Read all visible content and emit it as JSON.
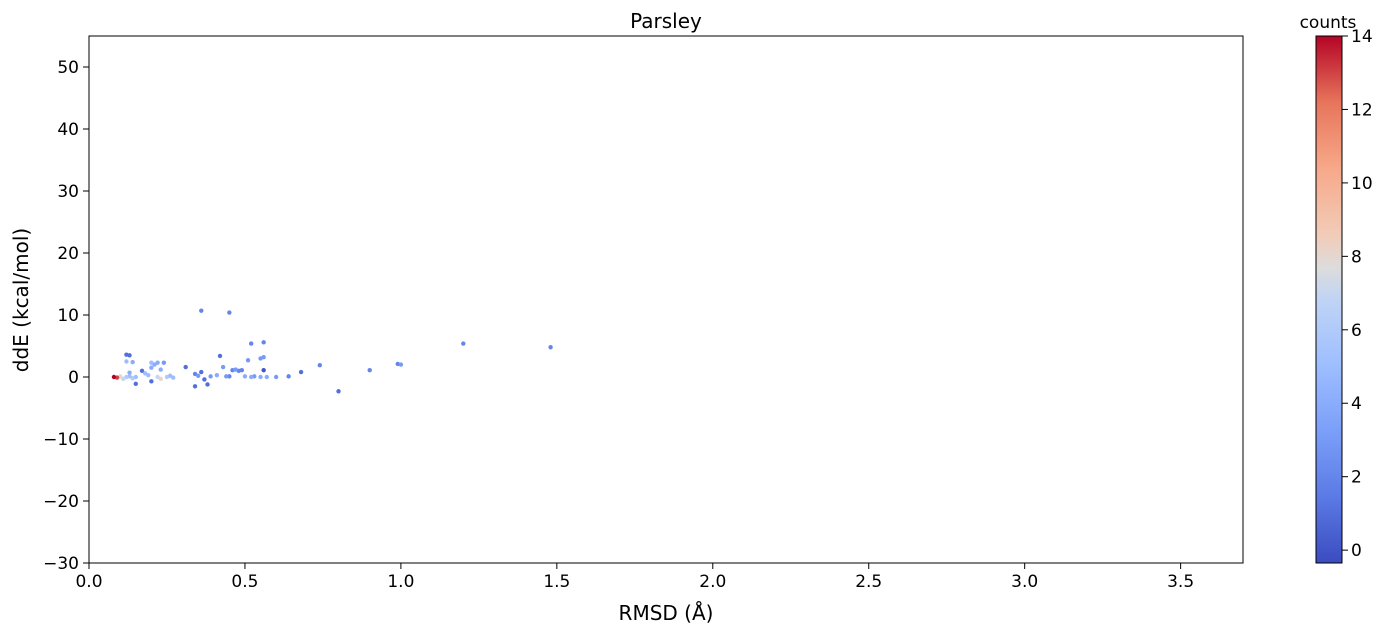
{
  "chart_data": {
    "type": "scatter",
    "title": "Parsley",
    "xlabel": "RMSD (Å)",
    "ylabel": "ddE (kcal/mol)",
    "xlim": [
      0.0,
      3.7
    ],
    "ylim": [
      -30,
      55
    ],
    "xticks": [
      "0.0",
      "0.5",
      "1.0",
      "1.5",
      "2.0",
      "2.5",
      "3.0",
      "3.5"
    ],
    "yticks": [
      "−30",
      "−20",
      "−10",
      "0",
      "10",
      "20",
      "30",
      "40",
      "50"
    ],
    "grid": false,
    "colorbar": {
      "label": "counts",
      "colormap": "coolwarm",
      "range": [
        -0.35,
        14
      ],
      "ticks": [
        "0",
        "2",
        "4",
        "6",
        "8",
        "10",
        "12",
        "14"
      ]
    },
    "points": [
      {
        "x": 0.08,
        "y": 0.0,
        "c": 14
      },
      {
        "x": 0.09,
        "y": -0.1,
        "c": 13
      },
      {
        "x": 0.1,
        "y": 0.1,
        "c": 8
      },
      {
        "x": 0.11,
        "y": -0.3,
        "c": 7
      },
      {
        "x": 0.12,
        "y": 0.0,
        "c": 6
      },
      {
        "x": 0.13,
        "y": 0.1,
        "c": 5
      },
      {
        "x": 0.14,
        "y": -0.2,
        "c": 6
      },
      {
        "x": 0.15,
        "y": 0.0,
        "c": 5
      },
      {
        "x": 0.12,
        "y": 2.5,
        "c": 5
      },
      {
        "x": 0.12,
        "y": 3.6,
        "c": 1
      },
      {
        "x": 0.13,
        "y": 3.5,
        "c": 1
      },
      {
        "x": 0.14,
        "y": 2.4,
        "c": 4
      },
      {
        "x": 0.13,
        "y": 0.7,
        "c": 4
      },
      {
        "x": 0.15,
        "y": -1.1,
        "c": 1
      },
      {
        "x": 0.17,
        "y": 1.0,
        "c": 1
      },
      {
        "x": 0.18,
        "y": 0.6,
        "c": 5
      },
      {
        "x": 0.19,
        "y": 0.3,
        "c": 5
      },
      {
        "x": 0.2,
        "y": 2.3,
        "c": 5
      },
      {
        "x": 0.2,
        "y": -0.7,
        "c": 1
      },
      {
        "x": 0.2,
        "y": 1.5,
        "c": 4
      },
      {
        "x": 0.21,
        "y": 2.0,
        "c": 4
      },
      {
        "x": 0.22,
        "y": 0.0,
        "c": 7
      },
      {
        "x": 0.22,
        "y": 2.3,
        "c": 4
      },
      {
        "x": 0.23,
        "y": -0.3,
        "c": 8
      },
      {
        "x": 0.23,
        "y": 1.2,
        "c": 4
      },
      {
        "x": 0.24,
        "y": 2.3,
        "c": 3
      },
      {
        "x": 0.25,
        "y": 0.0,
        "c": 6
      },
      {
        "x": 0.26,
        "y": 0.2,
        "c": 5
      },
      {
        "x": 0.27,
        "y": -0.1,
        "c": 5
      },
      {
        "x": 0.31,
        "y": 1.6,
        "c": 1
      },
      {
        "x": 0.34,
        "y": 0.5,
        "c": 2
      },
      {
        "x": 0.34,
        "y": -1.5,
        "c": 1
      },
      {
        "x": 0.35,
        "y": 0.2,
        "c": 3
      },
      {
        "x": 0.36,
        "y": 0.8,
        "c": 1
      },
      {
        "x": 0.36,
        "y": 10.7,
        "c": 2
      },
      {
        "x": 0.37,
        "y": -0.4,
        "c": 1
      },
      {
        "x": 0.38,
        "y": -1.2,
        "c": 1
      },
      {
        "x": 0.39,
        "y": 0.1,
        "c": 3
      },
      {
        "x": 0.41,
        "y": 0.3,
        "c": 4
      },
      {
        "x": 0.42,
        "y": 3.4,
        "c": 1
      },
      {
        "x": 0.43,
        "y": 1.6,
        "c": 3
      },
      {
        "x": 0.44,
        "y": 0.1,
        "c": 3
      },
      {
        "x": 0.45,
        "y": 0.1,
        "c": 2
      },
      {
        "x": 0.45,
        "y": 10.4,
        "c": 2
      },
      {
        "x": 0.46,
        "y": 1.1,
        "c": 2
      },
      {
        "x": 0.47,
        "y": 1.2,
        "c": 3
      },
      {
        "x": 0.48,
        "y": 1.0,
        "c": 2
      },
      {
        "x": 0.49,
        "y": 1.1,
        "c": 2
      },
      {
        "x": 0.5,
        "y": 0.1,
        "c": 4
      },
      {
        "x": 0.51,
        "y": 2.7,
        "c": 3
      },
      {
        "x": 0.52,
        "y": 0.0,
        "c": 4
      },
      {
        "x": 0.52,
        "y": 5.4,
        "c": 2
      },
      {
        "x": 0.53,
        "y": 0.1,
        "c": 3
      },
      {
        "x": 0.55,
        "y": 0.0,
        "c": 4
      },
      {
        "x": 0.55,
        "y": 3.0,
        "c": 3
      },
      {
        "x": 0.56,
        "y": 1.1,
        "c": 0
      },
      {
        "x": 0.56,
        "y": 3.2,
        "c": 3
      },
      {
        "x": 0.56,
        "y": 5.6,
        "c": 2
      },
      {
        "x": 0.57,
        "y": 0.0,
        "c": 4
      },
      {
        "x": 0.6,
        "y": 0.0,
        "c": 3
      },
      {
        "x": 0.64,
        "y": 0.1,
        "c": 2
      },
      {
        "x": 0.68,
        "y": 0.8,
        "c": 1
      },
      {
        "x": 0.74,
        "y": 1.9,
        "c": 2
      },
      {
        "x": 0.8,
        "y": -2.3,
        "c": 1
      },
      {
        "x": 0.9,
        "y": 1.1,
        "c": 2
      },
      {
        "x": 0.99,
        "y": 2.1,
        "c": 2
      },
      {
        "x": 1.0,
        "y": 2.0,
        "c": 3
      },
      {
        "x": 1.2,
        "y": 5.4,
        "c": 2
      },
      {
        "x": 1.48,
        "y": 4.8,
        "c": 2
      }
    ]
  }
}
